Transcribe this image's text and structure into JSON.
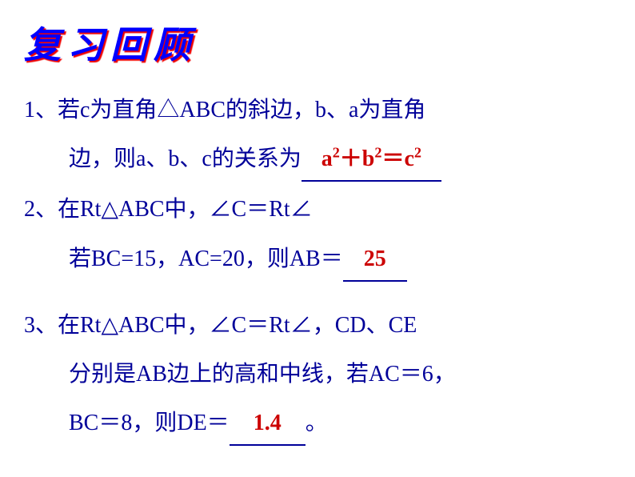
{
  "title": "复习回顾",
  "q1": {
    "line1": "1、若c为直角△ABC的斜边，b、a为直角",
    "line2_pre": "边，则a、b、c的关系为",
    "answer_html": "a<sup>2</sup>＋b<sup>2</sup>＝c<sup>2</sup>"
  },
  "q2": {
    "line1": "2、在Rt△ABC中，∠C＝Rt∠",
    "line2_pre": "若BC=15，AC=20，则AB＝",
    "answer": "25"
  },
  "q3": {
    "line1": "3、在Rt△ABC中，∠C＝Rt∠，CD、CE",
    "line2": "分别是AB边上的高和中线，若AC＝6，",
    "line3_pre": "BC＝8，则DE＝",
    "line3_post": "。",
    "answer": "1.4"
  },
  "colors": {
    "title_color": "#0000ff",
    "title_shadow": "#ee0000",
    "body_color": "#000099",
    "answer_color": "#cc0000",
    "background": "#ffffff"
  },
  "fonts": {
    "title_size": 46,
    "body_size": 28
  }
}
